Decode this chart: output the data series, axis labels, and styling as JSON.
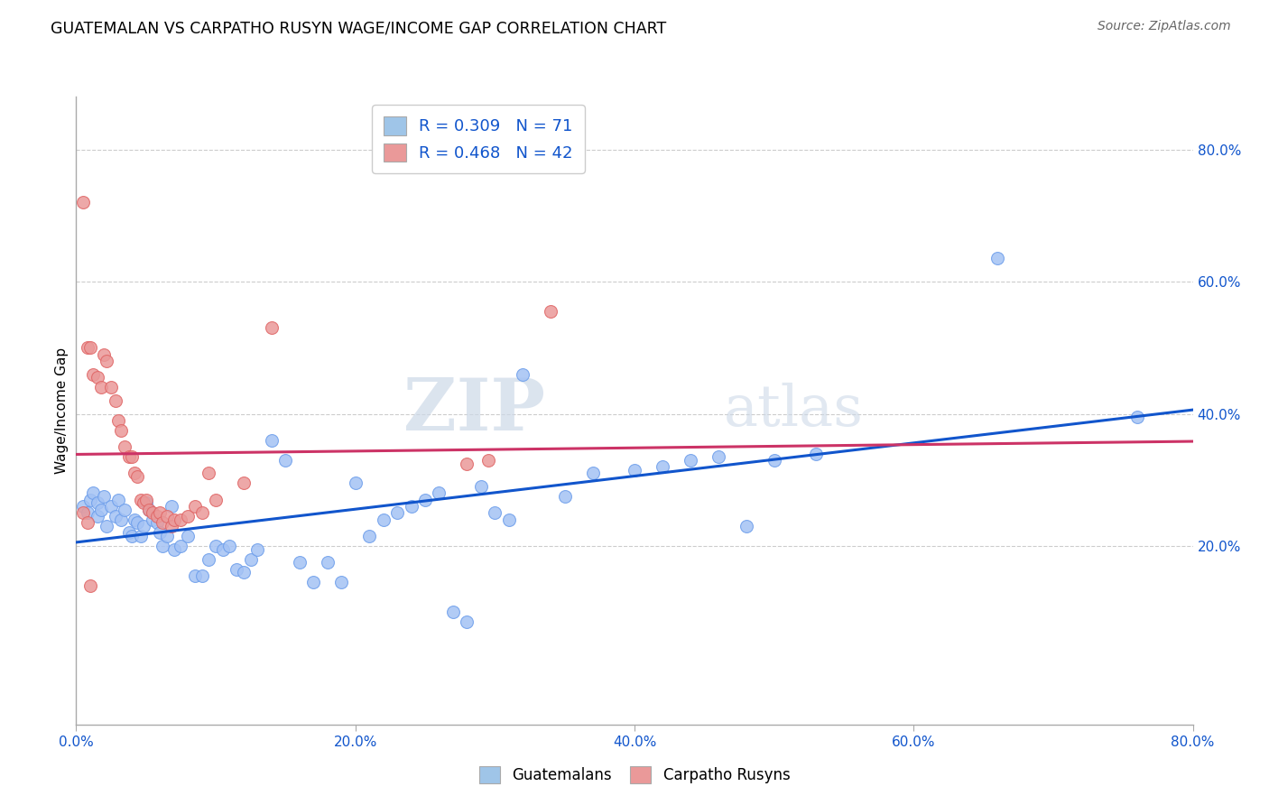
{
  "title": "GUATEMALAN VS CARPATHO RUSYN WAGE/INCOME GAP CORRELATION CHART",
  "source": "Source: ZipAtlas.com",
  "ylabel": "Wage/Income Gap",
  "watermark_zip": "ZIP",
  "watermark_atlas": "atlas",
  "blue_R": 0.309,
  "blue_N": 71,
  "pink_R": 0.468,
  "pink_N": 42,
  "xlim": [
    0.0,
    0.8
  ],
  "ylim": [
    -0.07,
    0.88
  ],
  "xticks": [
    0.0,
    0.2,
    0.4,
    0.6,
    0.8
  ],
  "xticklabels": [
    "0.0%",
    "20.0%",
    "40.0%",
    "60.0%",
    "80.0%"
  ],
  "yticks_right": [
    0.2,
    0.4,
    0.6,
    0.8
  ],
  "yticklabels_right": [
    "20.0%",
    "40.0%",
    "60.0%",
    "80.0%"
  ],
  "blue_color": "#a4c2f4",
  "blue_edge_color": "#6d9eeb",
  "pink_color": "#ea9999",
  "pink_edge_color": "#e06666",
  "blue_line_color": "#1155cc",
  "pink_line_color": "#cc3366",
  "legend_blue_fill": "#9fc5e8",
  "legend_pink_fill": "#ea9999",
  "background_color": "#ffffff",
  "grid_color": "#cccccc",
  "blue_scatter_x": [
    0.005,
    0.008,
    0.01,
    0.012,
    0.015,
    0.015,
    0.018,
    0.02,
    0.022,
    0.025,
    0.028,
    0.03,
    0.032,
    0.035,
    0.038,
    0.04,
    0.042,
    0.044,
    0.046,
    0.048,
    0.05,
    0.052,
    0.055,
    0.058,
    0.06,
    0.062,
    0.065,
    0.068,
    0.07,
    0.075,
    0.08,
    0.085,
    0.09,
    0.095,
    0.1,
    0.105,
    0.11,
    0.115,
    0.12,
    0.125,
    0.13,
    0.14,
    0.15,
    0.16,
    0.17,
    0.18,
    0.19,
    0.2,
    0.21,
    0.22,
    0.23,
    0.24,
    0.25,
    0.26,
    0.27,
    0.28,
    0.29,
    0.3,
    0.31,
    0.32,
    0.35,
    0.37,
    0.4,
    0.42,
    0.44,
    0.46,
    0.48,
    0.5,
    0.53,
    0.66,
    0.76
  ],
  "blue_scatter_y": [
    0.26,
    0.25,
    0.27,
    0.28,
    0.265,
    0.245,
    0.255,
    0.275,
    0.23,
    0.26,
    0.245,
    0.27,
    0.24,
    0.255,
    0.22,
    0.215,
    0.24,
    0.235,
    0.215,
    0.23,
    0.265,
    0.255,
    0.24,
    0.235,
    0.22,
    0.2,
    0.215,
    0.26,
    0.195,
    0.2,
    0.215,
    0.155,
    0.155,
    0.18,
    0.2,
    0.195,
    0.2,
    0.165,
    0.16,
    0.18,
    0.195,
    0.36,
    0.33,
    0.175,
    0.145,
    0.175,
    0.145,
    0.295,
    0.215,
    0.24,
    0.25,
    0.26,
    0.27,
    0.28,
    0.1,
    0.085,
    0.29,
    0.25,
    0.24,
    0.46,
    0.275,
    0.31,
    0.315,
    0.32,
    0.33,
    0.335,
    0.23,
    0.33,
    0.34,
    0.635,
    0.395
  ],
  "pink_scatter_x": [
    0.005,
    0.008,
    0.01,
    0.012,
    0.015,
    0.018,
    0.02,
    0.022,
    0.025,
    0.028,
    0.03,
    0.032,
    0.035,
    0.038,
    0.04,
    0.042,
    0.044,
    0.046,
    0.048,
    0.05,
    0.052,
    0.055,
    0.058,
    0.06,
    0.062,
    0.065,
    0.068,
    0.07,
    0.075,
    0.08,
    0.085,
    0.09,
    0.095,
    0.1,
    0.12,
    0.14,
    0.005,
    0.008,
    0.01,
    0.28,
    0.295,
    0.34
  ],
  "pink_scatter_y": [
    0.72,
    0.5,
    0.5,
    0.46,
    0.455,
    0.44,
    0.49,
    0.48,
    0.44,
    0.42,
    0.39,
    0.375,
    0.35,
    0.335,
    0.335,
    0.31,
    0.305,
    0.27,
    0.265,
    0.27,
    0.255,
    0.25,
    0.245,
    0.25,
    0.235,
    0.245,
    0.23,
    0.24,
    0.24,
    0.245,
    0.26,
    0.25,
    0.31,
    0.27,
    0.295,
    0.53,
    0.25,
    0.235,
    0.14,
    0.325,
    0.33,
    0.555
  ]
}
